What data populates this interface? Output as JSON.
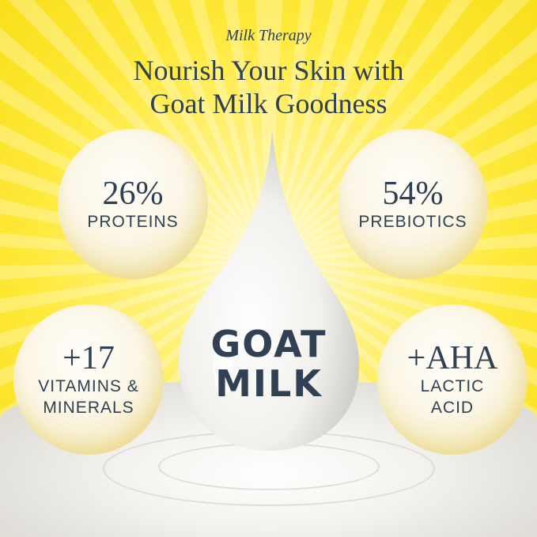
{
  "header": {
    "brand": "Milk Therapy",
    "headline_line1": "Nourish Your Skin with",
    "headline_line2": "Goat Milk Goodness"
  },
  "bubbles": [
    {
      "value": "26%",
      "label": "PROTEINS"
    },
    {
      "value": "54%",
      "label": "PREBIOTICS"
    },
    {
      "value": "+17",
      "label_line1": "VITAMINS &",
      "label_line2": "MINERALS"
    },
    {
      "value": "+AHA",
      "label_line1": "LACTIC",
      "label_line2": "ACID"
    }
  ],
  "drop": {
    "line1": "GOAT",
    "line2": "MILK"
  },
  "colors": {
    "text": "#2f4152",
    "background": "#ffe93a",
    "milk": "#f3f2ee"
  }
}
